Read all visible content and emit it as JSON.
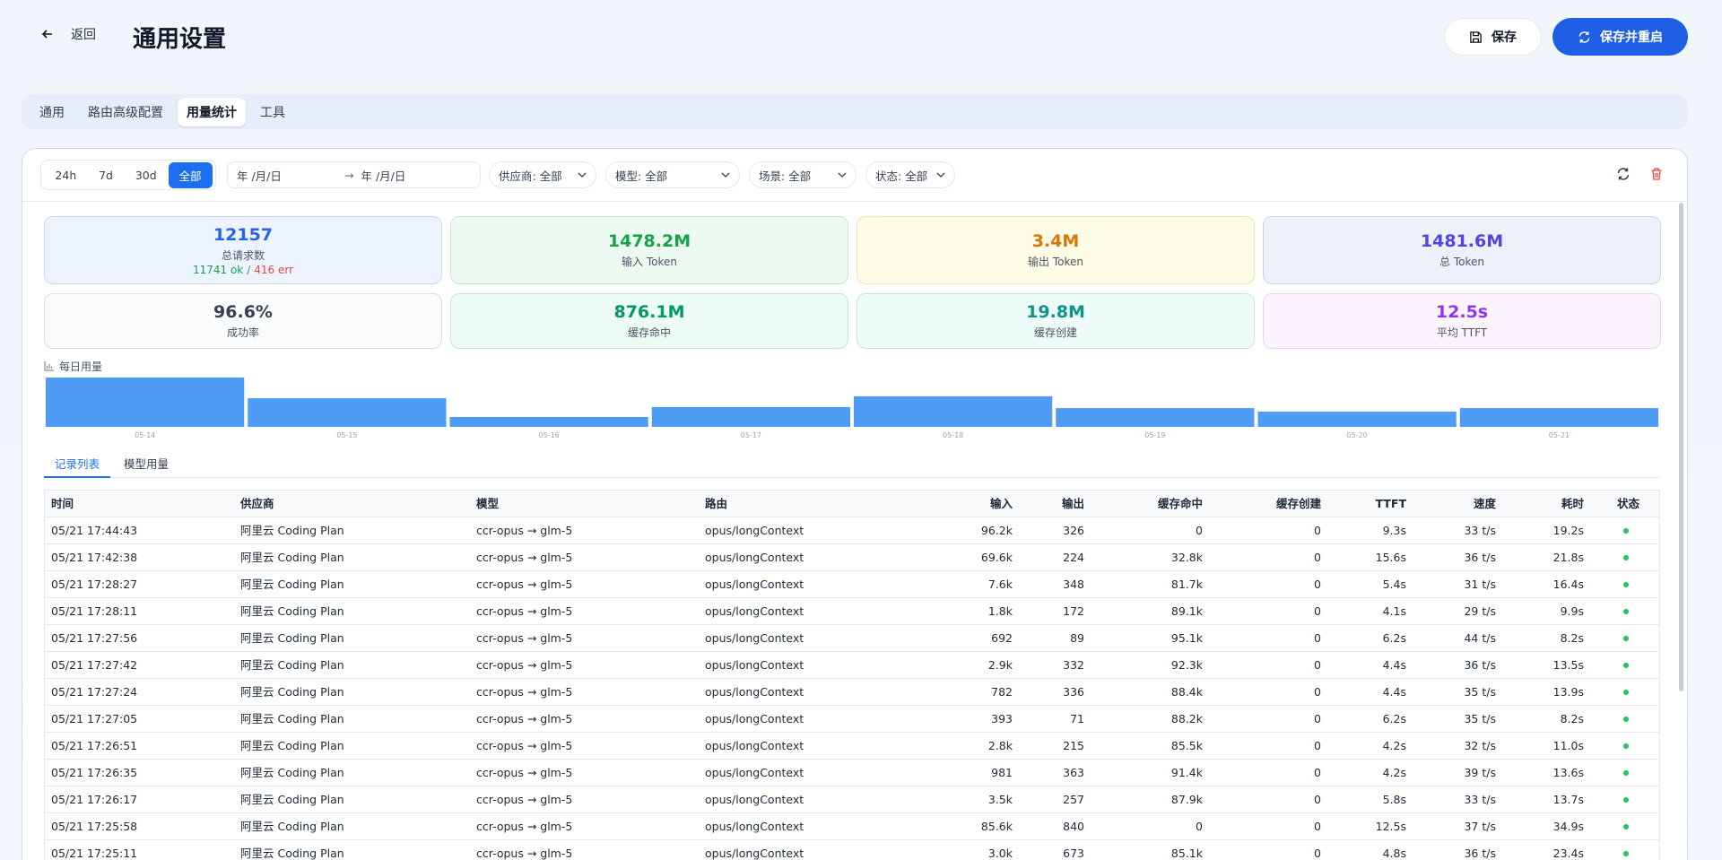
{
  "header": {
    "back": "返回",
    "title": "通用设置",
    "save": "保存",
    "save_restart": "保存并重启"
  },
  "tabs": [
    "通用",
    "路由高级配置",
    "用量统计",
    "工具"
  ],
  "active_tab": 2,
  "filters": {
    "ranges": [
      "24h",
      "7d",
      "30d",
      "全部"
    ],
    "active_range": 3,
    "date_from": "年 /月/日",
    "date_sep": "→",
    "date_to": "年 /月/日",
    "provider": "供应商: 全部",
    "model": "模型: 全部",
    "scene": "场景: 全部",
    "status": "状态: 全部"
  },
  "stats": [
    {
      "value": "12157",
      "label": "总请求数",
      "ok": "11741 ok",
      "sep": "/",
      "err": "416 err"
    },
    {
      "value": "1478.2M",
      "label": "输入 Token"
    },
    {
      "value": "3.4M",
      "label": "输出 Token"
    },
    {
      "value": "1481.6M",
      "label": "总 Token"
    },
    {
      "value": "96.6%",
      "label": "成功率"
    },
    {
      "value": "876.1M",
      "label": "缓存命中"
    },
    {
      "value": "19.8M",
      "label": "缓存创建"
    },
    {
      "value": "12.5s",
      "label": "平均 TTFT"
    }
  ],
  "chart_data": {
    "type": "bar",
    "title": "每日用量",
    "categories": [
      "05-14",
      "05-15",
      "05-16",
      "05-17",
      "05-18",
      "05-19",
      "05-20",
      "05-21"
    ],
    "values": [
      100,
      58,
      20,
      40,
      62,
      38,
      31,
      38
    ],
    "ylim": [
      0,
      100
    ],
    "color": "#4f9cf7"
  },
  "sub_tabs": [
    "记录列表",
    "模型用量"
  ],
  "active_sub_tab": 0,
  "table": {
    "columns": [
      "时间",
      "供应商",
      "模型",
      "路由",
      "输入",
      "输出",
      "缓存命中",
      "缓存创建",
      "TTFT",
      "速度",
      "耗时",
      "状态"
    ],
    "rows": [
      [
        "05/21 17:44:43",
        "阿里云 Coding Plan",
        "ccr-opus → glm-5",
        "opus/longContext",
        "96.2k",
        "326",
        "0",
        "0",
        "9.3s",
        "33 t/s",
        "19.2s"
      ],
      [
        "05/21 17:42:38",
        "阿里云 Coding Plan",
        "ccr-opus → glm-5",
        "opus/longContext",
        "69.6k",
        "224",
        "32.8k",
        "0",
        "15.6s",
        "36 t/s",
        "21.8s"
      ],
      [
        "05/21 17:28:27",
        "阿里云 Coding Plan",
        "ccr-opus → glm-5",
        "opus/longContext",
        "7.6k",
        "348",
        "81.7k",
        "0",
        "5.4s",
        "31 t/s",
        "16.4s"
      ],
      [
        "05/21 17:28:11",
        "阿里云 Coding Plan",
        "ccr-opus → glm-5",
        "opus/longContext",
        "1.8k",
        "172",
        "89.1k",
        "0",
        "4.1s",
        "29 t/s",
        "9.9s"
      ],
      [
        "05/21 17:27:56",
        "阿里云 Coding Plan",
        "ccr-opus → glm-5",
        "opus/longContext",
        "692",
        "89",
        "95.1k",
        "0",
        "6.2s",
        "44 t/s",
        "8.2s"
      ],
      [
        "05/21 17:27:42",
        "阿里云 Coding Plan",
        "ccr-opus → glm-5",
        "opus/longContext",
        "2.9k",
        "332",
        "92.3k",
        "0",
        "4.4s",
        "36 t/s",
        "13.5s"
      ],
      [
        "05/21 17:27:24",
        "阿里云 Coding Plan",
        "ccr-opus → glm-5",
        "opus/longContext",
        "782",
        "336",
        "88.4k",
        "0",
        "4.4s",
        "35 t/s",
        "13.9s"
      ],
      [
        "05/21 17:27:05",
        "阿里云 Coding Plan",
        "ccr-opus → glm-5",
        "opus/longContext",
        "393",
        "71",
        "88.2k",
        "0",
        "6.2s",
        "35 t/s",
        "8.2s"
      ],
      [
        "05/21 17:26:51",
        "阿里云 Coding Plan",
        "ccr-opus → glm-5",
        "opus/longContext",
        "2.8k",
        "215",
        "85.5k",
        "0",
        "4.2s",
        "32 t/s",
        "11.0s"
      ],
      [
        "05/21 17:26:35",
        "阿里云 Coding Plan",
        "ccr-opus → glm-5",
        "opus/longContext",
        "981",
        "363",
        "91.4k",
        "0",
        "4.2s",
        "39 t/s",
        "13.6s"
      ],
      [
        "05/21 17:26:17",
        "阿里云 Coding Plan",
        "ccr-opus → glm-5",
        "opus/longContext",
        "3.5k",
        "257",
        "87.9k",
        "0",
        "5.8s",
        "33 t/s",
        "13.7s"
      ],
      [
        "05/21 17:25:58",
        "阿里云 Coding Plan",
        "ccr-opus → glm-5",
        "opus/longContext",
        "85.6k",
        "840",
        "0",
        "0",
        "12.5s",
        "37 t/s",
        "34.9s"
      ],
      [
        "05/21 17:25:11",
        "阿里云 Coding Plan",
        "ccr-opus → glm-5",
        "opus/longContext",
        "3.0k",
        "673",
        "85.1k",
        "0",
        "4.8s",
        "36 t/s",
        "23.4s"
      ]
    ]
  }
}
